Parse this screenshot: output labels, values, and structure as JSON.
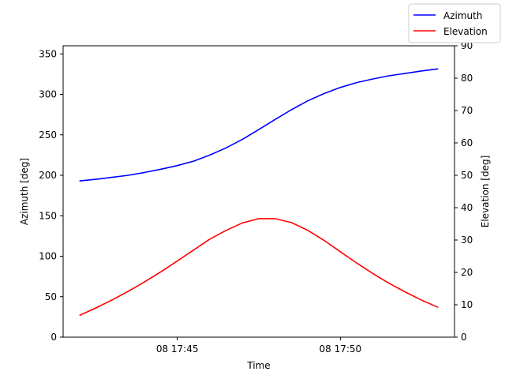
{
  "chart_data": {
    "type": "line",
    "xlabel": "Time",
    "ylabel_left": "Azimuth [deg]",
    "ylabel_right": "Elevation [deg]",
    "x_ticks": [
      "08 17:45",
      "08 17:50"
    ],
    "y_left_ticks": [
      0,
      50,
      100,
      150,
      200,
      250,
      300,
      350
    ],
    "y_right_ticks": [
      0,
      10,
      20,
      30,
      40,
      50,
      60,
      70,
      80,
      90
    ],
    "ylim_left": [
      0,
      360
    ],
    "ylim_right": [
      0,
      90
    ],
    "x_range_minutes": [
      -3.5,
      8.5
    ],
    "legend_location": "upper-right",
    "grid": false,
    "series": [
      {
        "name": "Azimuth",
        "axis": "left",
        "color": "#0000ff",
        "x_minutes": [
          -3.0,
          -2.5,
          -2.0,
          -1.5,
          -1.0,
          -0.5,
          0.0,
          0.5,
          1.0,
          1.5,
          2.0,
          2.5,
          3.0,
          3.5,
          4.0,
          4.5,
          5.0,
          5.5,
          6.0,
          6.5,
          7.0,
          7.5,
          8.0
        ],
        "values": [
          193,
          195,
          197.5,
          200,
          203.5,
          207.5,
          212,
          217.5,
          225,
          234,
          244.5,
          256.5,
          269,
          281,
          292,
          301,
          308.5,
          314.5,
          319,
          323,
          326,
          329,
          331.5
        ]
      },
      {
        "name": "Elevation",
        "axis": "right",
        "color": "#ff0000",
        "x_minutes": [
          -3.0,
          -2.5,
          -2.0,
          -1.5,
          -1.0,
          -0.5,
          0.0,
          0.5,
          1.0,
          1.5,
          2.0,
          2.5,
          3.0,
          3.5,
          4.0,
          4.5,
          5.0,
          5.5,
          6.0,
          6.5,
          7.0,
          7.5,
          8.0
        ],
        "values": [
          6.7,
          9,
          11.5,
          14.2,
          17.1,
          20.2,
          23.5,
          26.9,
          30.3,
          33,
          35.3,
          36.6,
          36.6,
          35.4,
          33,
          29.9,
          26.4,
          22.9,
          19.6,
          16.6,
          13.9,
          11.4,
          9.2
        ]
      }
    ]
  }
}
